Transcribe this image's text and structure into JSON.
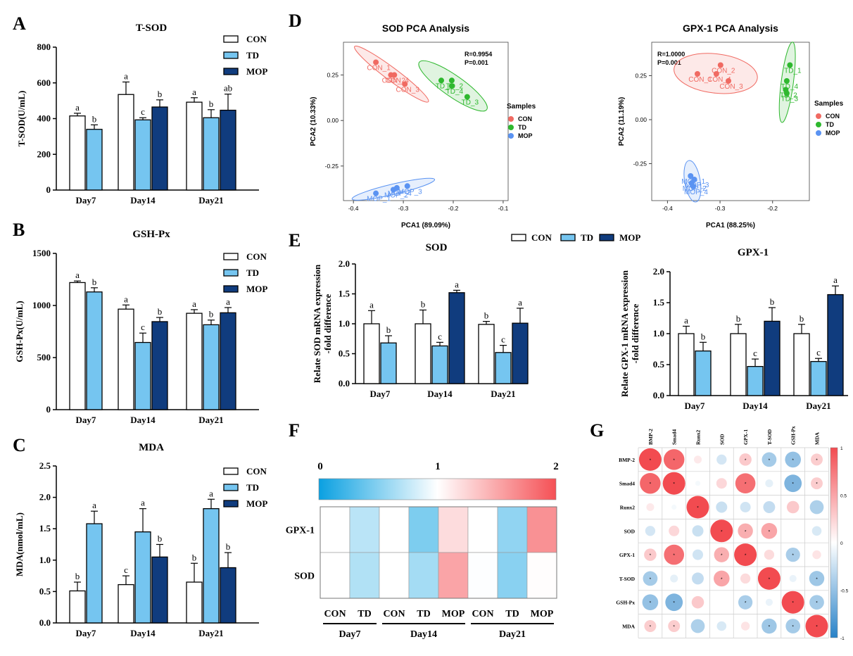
{
  "panel_labels": {
    "A": "A",
    "B": "B",
    "C": "C",
    "D": "D",
    "E": "E",
    "F": "F",
    "G": "G"
  },
  "colors": {
    "con": "#ffffff",
    "td": "#75c5f0",
    "mop": "#103c7e",
    "red": "#f06a62",
    "green": "#2eb82e",
    "blue": "#5a93f2"
  },
  "chart_data": [
    {
      "id": "A",
      "type": "bar",
      "title": "T-SOD",
      "ylabel": "T-SOD(U/mL)",
      "categories": [
        "Day7",
        "Day14",
        "Day21"
      ],
      "ylim": [
        0,
        800
      ],
      "yticks": [
        "0",
        "200",
        "400",
        "600",
        "800"
      ],
      "legend": [
        "CON",
        "TD",
        "MOP"
      ],
      "series": [
        {
          "name": "CON",
          "values": [
            415,
            535,
            492
          ],
          "errors": [
            15,
            70,
            25
          ],
          "labels": [
            "a",
            "a",
            "a"
          ]
        },
        {
          "name": "TD",
          "values": [
            340,
            393,
            405
          ],
          "errors": [
            25,
            12,
            45
          ],
          "labels": [
            "b",
            "c",
            "b"
          ]
        },
        {
          "name": "MOP",
          "values": [
            null,
            465,
            447
          ],
          "errors": [
            null,
            40,
            90
          ],
          "labels": [
            "",
            "b",
            "ab"
          ]
        }
      ]
    },
    {
      "id": "B",
      "type": "bar",
      "title": "GSH-Px",
      "ylabel": "GSH-Px(U/mL)",
      "categories": [
        "Day7",
        "Day14",
        "Day21"
      ],
      "ylim": [
        0,
        1500
      ],
      "yticks": [
        "0",
        "500",
        "1000",
        "1500"
      ],
      "legend": [
        "CON",
        "TD",
        "MOP"
      ],
      "series": [
        {
          "name": "CON",
          "values": [
            1220,
            965,
            925
          ],
          "errors": [
            15,
            40,
            35
          ],
          "labels": [
            "a",
            "a",
            "a"
          ]
        },
        {
          "name": "TD",
          "values": [
            1130,
            645,
            815
          ],
          "errors": [
            40,
            90,
            45
          ],
          "labels": [
            "b",
            "c",
            "b"
          ]
        },
        {
          "name": "MOP",
          "values": [
            null,
            845,
            930
          ],
          "errors": [
            null,
            40,
            50
          ],
          "labels": [
            "",
            "b",
            "a"
          ]
        }
      ]
    },
    {
      "id": "C",
      "type": "bar",
      "title": "MDA",
      "ylabel": "MDA(nmol/mL)",
      "categories": [
        "Day7",
        "Day14",
        "Day21"
      ],
      "ylim": [
        0,
        2.5
      ],
      "yticks": [
        "0.0",
        "0.5",
        "1.0",
        "1.5",
        "2.0",
        "2.5"
      ],
      "legend": [
        "CON",
        "TD",
        "MOP"
      ],
      "series": [
        {
          "name": "CON",
          "values": [
            0.51,
            0.61,
            0.65
          ],
          "errors": [
            0.14,
            0.14,
            0.3
          ],
          "labels": [
            "b",
            "c",
            "b"
          ]
        },
        {
          "name": "TD",
          "values": [
            1.58,
            1.45,
            1.82
          ],
          "errors": [
            0.2,
            0.37,
            0.15
          ],
          "labels": [
            "a",
            "a",
            "a"
          ]
        },
        {
          "name": "MOP",
          "values": [
            null,
            1.05,
            0.88
          ],
          "errors": [
            null,
            0.2,
            0.24
          ],
          "labels": [
            "",
            "b",
            "b"
          ]
        }
      ]
    },
    {
      "id": "E1",
      "type": "bar",
      "title": "SOD",
      "ylabel": "Relate SOD mRNA expression",
      "ylabel2": "-fold difference",
      "categories": [
        "Day7",
        "Day14",
        "Day21"
      ],
      "ylim": [
        0,
        2.0
      ],
      "yticks": [
        "0.0",
        "0.5",
        "1.0",
        "1.5",
        "2.0"
      ],
      "series": [
        {
          "name": "CON",
          "values": [
            1.0,
            1.0,
            0.99
          ],
          "errors": [
            0.22,
            0.23,
            0.05
          ],
          "labels": [
            "a",
            "b",
            "b"
          ]
        },
        {
          "name": "TD",
          "values": [
            0.68,
            0.63,
            0.52
          ],
          "errors": [
            0.12,
            0.06,
            0.12
          ],
          "labels": [
            "b",
            "c",
            "c"
          ]
        },
        {
          "name": "MOP",
          "values": [
            null,
            1.52,
            1.01
          ],
          "errors": [
            null,
            0.04,
            0.25
          ],
          "labels": [
            "",
            "a",
            "a"
          ]
        }
      ]
    },
    {
      "id": "E2",
      "type": "bar",
      "title": "GPX-1",
      "ylabel": "Relate GPX-1 mRNA expression",
      "ylabel2": "-fold difference",
      "categories": [
        "Day7",
        "Day14",
        "Day21"
      ],
      "ylim": [
        0,
        2.0
      ],
      "yticks": [
        "0.0",
        "0.5",
        "1.0",
        "1.5",
        "2.0"
      ],
      "series": [
        {
          "name": "CON",
          "values": [
            1.0,
            1.0,
            1.0
          ],
          "errors": [
            0.12,
            0.15,
            0.15
          ],
          "labels": [
            "a",
            "b",
            "b"
          ]
        },
        {
          "name": "TD",
          "values": [
            0.72,
            0.47,
            0.55
          ],
          "errors": [
            0.14,
            0.12,
            0.05
          ],
          "labels": [
            "b",
            "c",
            "c"
          ]
        },
        {
          "name": "MOP",
          "values": [
            null,
            1.2,
            1.63
          ],
          "errors": [
            null,
            0.22,
            0.14
          ],
          "labels": [
            "",
            "b",
            "a"
          ]
        }
      ]
    },
    {
      "id": "D1",
      "type": "scatter",
      "title": "SOD PCA Analysis",
      "xlabel": "PCA1 (89.09%)",
      "ylabel": "PCA2 (10.33%)",
      "xlim": [
        -0.42,
        -0.09
      ],
      "ylim": [
        -0.44,
        0.43
      ],
      "xticks": [
        -0.4,
        -0.3,
        -0.2,
        -0.1
      ],
      "yticks": [
        -0.25,
        0,
        0.25
      ],
      "xtick_labels": [
        "-0.4",
        "-0.3",
        "-0.2",
        "-0.1"
      ],
      "ytick_labels": [
        "-0.25",
        "0.00",
        "0.25"
      ],
      "stats": [
        "R=0.9954",
        "P=0.001"
      ],
      "legend_title": "Samples",
      "groups": [
        "CON",
        "TD",
        "MOP"
      ],
      "points": [
        {
          "g": "CON",
          "x": -0.355,
          "y": 0.32,
          "label": "CON_1"
        },
        {
          "g": "CON",
          "x": -0.325,
          "y": 0.25,
          "label": "CON_2"
        },
        {
          "g": "CON",
          "x": -0.318,
          "y": 0.25,
          "label": "CON_4"
        },
        {
          "g": "CON",
          "x": -0.297,
          "y": 0.2,
          "label": "CON_3"
        },
        {
          "g": "TD",
          "x": -0.224,
          "y": 0.22,
          "label": "TD_1"
        },
        {
          "g": "TD",
          "x": -0.203,
          "y": 0.22,
          "label": "TD_2"
        },
        {
          "g": "TD",
          "x": -0.203,
          "y": 0.19,
          "label": "TD_4"
        },
        {
          "g": "TD",
          "x": -0.172,
          "y": 0.13,
          "label": "TD_3"
        },
        {
          "g": "MOP",
          "x": -0.355,
          "y": -0.4,
          "label": "MOP_1"
        },
        {
          "g": "MOP",
          "x": -0.32,
          "y": -0.38,
          "label": "MOP_2"
        },
        {
          "g": "MOP",
          "x": -0.313,
          "y": -0.37,
          "label": "MOP_4"
        },
        {
          "g": "MOP",
          "x": -0.292,
          "y": -0.36,
          "label": "MOP_3"
        }
      ]
    },
    {
      "id": "D2",
      "type": "scatter",
      "title": "GPX-1 PCA Analysis",
      "xlabel": "PCA1 (88.25%)",
      "ylabel": "PCA2 (11.19%)",
      "xlim": [
        -0.43,
        -0.13
      ],
      "ylim": [
        -0.46,
        0.44
      ],
      "xticks": [
        -0.4,
        -0.3,
        -0.2
      ],
      "yticks": [
        -0.25,
        0,
        0.25
      ],
      "xtick_labels": [
        "-0.4",
        "-0.3",
        "-0.2"
      ],
      "ytick_labels": [
        "-0.25",
        "0.00",
        "0.25"
      ],
      "stats": [
        "R=1.0000",
        "P=0.001"
      ],
      "legend_title": "Samples",
      "groups": [
        "CON",
        "TD",
        "MOP"
      ],
      "points": [
        {
          "g": "CON",
          "x": -0.343,
          "y": 0.26,
          "label": "CON_1"
        },
        {
          "g": "CON",
          "x": -0.299,
          "y": 0.31,
          "label": "CON_2"
        },
        {
          "g": "CON",
          "x": -0.307,
          "y": 0.26,
          "label": "CON_4"
        },
        {
          "g": "CON",
          "x": -0.284,
          "y": 0.22,
          "label": "CON_3"
        },
        {
          "g": "TD",
          "x": -0.167,
          "y": 0.31,
          "label": "TD_1"
        },
        {
          "g": "TD",
          "x": -0.173,
          "y": 0.22,
          "label": "TD_4"
        },
        {
          "g": "TD",
          "x": -0.175,
          "y": 0.17,
          "label": "TD_2"
        },
        {
          "g": "TD",
          "x": -0.173,
          "y": 0.15,
          "label": "TD_3"
        },
        {
          "g": "MOP",
          "x": -0.356,
          "y": -0.32,
          "label": "MOP_1"
        },
        {
          "g": "MOP",
          "x": -0.354,
          "y": -0.36,
          "label": "MOP_2"
        },
        {
          "g": "MOP",
          "x": -0.349,
          "y": -0.34,
          "label": "MOP_3"
        },
        {
          "g": "MOP",
          "x": -0.351,
          "y": -0.38,
          "label": "MOP_4"
        }
      ]
    },
    {
      "id": "F",
      "type": "heatmap",
      "scale_ticks": [
        "0",
        "1",
        "2"
      ],
      "rows": [
        "GPX-1",
        "SOD"
      ],
      "columns": [
        "CON",
        "TD",
        "CON",
        "TD",
        "MOP",
        "CON",
        "TD",
        "MOP"
      ],
      "values": [
        [
          1.0,
          0.72,
          1.0,
          0.47,
          1.2,
          1.0,
          0.55,
          1.63
        ],
        [
          1.0,
          0.68,
          1.0,
          0.63,
          1.52,
          0.99,
          0.52,
          1.01
        ]
      ],
      "groups": [
        {
          "label": "Day7",
          "span": 2
        },
        {
          "label": "Day14",
          "span": 3
        },
        {
          "label": "Day21",
          "span": 3
        }
      ]
    },
    {
      "id": "G",
      "type": "heatmap",
      "variables": [
        "BMP-2",
        "Smad4",
        "Runx2",
        "SOD",
        "GPX-1",
        "T-SOD",
        "GSH-Px",
        "MDA"
      ],
      "colorbar_ticks": [
        "1",
        "0.5",
        "0",
        "-0.5",
        "-1"
      ],
      "matrix": [
        [
          1.0,
          0.85,
          0.12,
          -0.2,
          0.3,
          -0.42,
          -0.5,
          0.28
        ],
        [
          0.85,
          1.0,
          -0.05,
          0.22,
          0.8,
          -0.12,
          -0.6,
          0.28
        ],
        [
          0.12,
          -0.05,
          1.0,
          -0.25,
          -0.22,
          -0.28,
          0.3,
          -0.38
        ],
        [
          -0.2,
          0.22,
          -0.25,
          1.0,
          0.45,
          0.5,
          0.0,
          -0.18
        ],
        [
          0.3,
          0.8,
          -0.22,
          0.45,
          1.0,
          0.2,
          -0.4,
          0.15
        ],
        [
          -0.42,
          -0.12,
          -0.28,
          0.5,
          0.2,
          1.0,
          -0.1,
          -0.45
        ],
        [
          -0.5,
          -0.6,
          0.3,
          0.0,
          -0.4,
          -0.1,
          1.0,
          -0.42
        ],
        [
          0.28,
          0.28,
          -0.38,
          -0.18,
          0.15,
          -0.45,
          -0.42,
          1.0
        ]
      ],
      "stars": [
        [
          1,
          1,
          0,
          0,
          1,
          1,
          1,
          1
        ],
        [
          1,
          1,
          0,
          0,
          1,
          0,
          1,
          1
        ],
        [
          0,
          0,
          1,
          0,
          0,
          0,
          0,
          0
        ],
        [
          0,
          0,
          0,
          1,
          1,
          1,
          0,
          0
        ],
        [
          1,
          1,
          0,
          1,
          1,
          0,
          1,
          0
        ],
        [
          1,
          0,
          0,
          1,
          0,
          1,
          0,
          1
        ],
        [
          1,
          1,
          0,
          0,
          1,
          0,
          1,
          1
        ],
        [
          1,
          1,
          0,
          0,
          0,
          1,
          1,
          1
        ]
      ],
      "star": "*"
    }
  ]
}
